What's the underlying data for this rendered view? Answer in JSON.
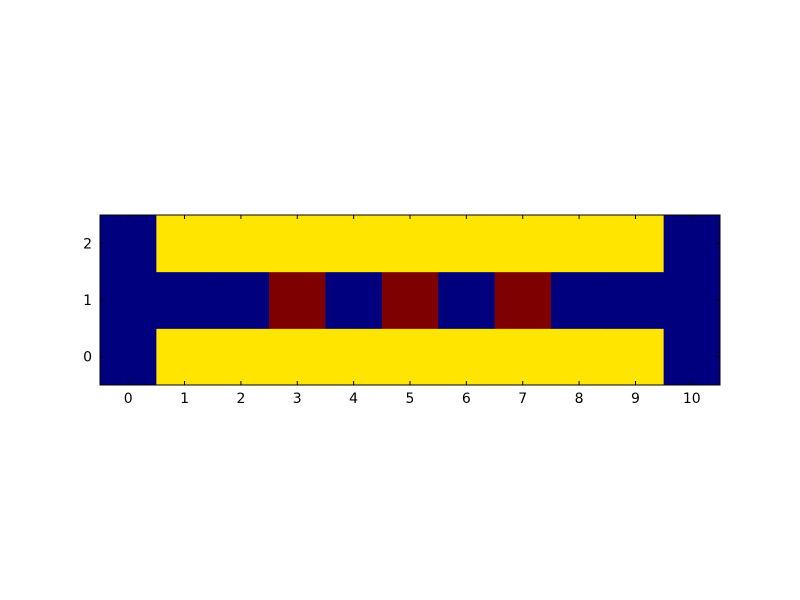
{
  "chart_data": {
    "type": "heatmap",
    "title": "",
    "xlabel": "",
    "ylabel": "",
    "x_ticks": [
      "0",
      "1",
      "2",
      "3",
      "4",
      "5",
      "6",
      "7",
      "8",
      "9",
      "10"
    ],
    "y_ticks": [
      "0",
      "1",
      "2"
    ],
    "xlim": [
      -0.5,
      10.5
    ],
    "ylim": [
      -0.5,
      2.5
    ],
    "grid": false,
    "legend": "none",
    "colors": {
      "0": "#00007f",
      "1": "#ffe500",
      "2": "#7f0000"
    },
    "rows": [
      [
        0,
        1,
        1,
        1,
        1,
        1,
        1,
        1,
        1,
        1,
        0
      ],
      [
        0,
        0,
        0,
        2,
        0,
        2,
        0,
        2,
        0,
        0,
        0
      ],
      [
        0,
        1,
        1,
        1,
        1,
        1,
        1,
        1,
        1,
        1,
        0
      ]
    ]
  }
}
